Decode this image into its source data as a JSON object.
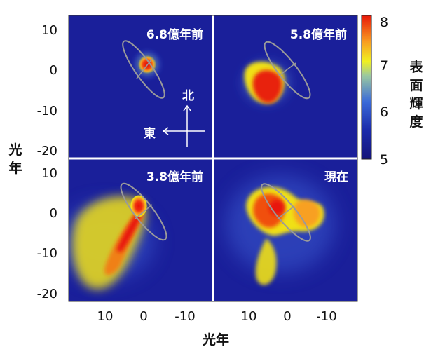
{
  "chart_data": {
    "type": "heatmap",
    "panels": [
      {
        "label": "6.8億年前",
        "position": "top-left"
      },
      {
        "label": "5.8億年前",
        "position": "top-right"
      },
      {
        "label": "3.8億年前",
        "position": "bottom-left"
      },
      {
        "label": "現在",
        "position": "bottom-right"
      }
    ],
    "xlabel": "光年",
    "ylabel": "光年",
    "x_ticks": [
      "10",
      "0",
      "-10"
    ],
    "y_ticks_top": [
      "10",
      "0",
      "-10",
      "-20"
    ],
    "y_ticks_bottom": [
      "10",
      "0",
      "-10",
      "-20"
    ],
    "colorbar": {
      "label": "表面輝度",
      "ticks": [
        "8",
        "7",
        "6",
        "5"
      ],
      "range": [
        5,
        8
      ],
      "colors": [
        "#1a1a8c",
        "#2060d8",
        "#f0f020",
        "#f8a020",
        "#e82010"
      ]
    },
    "compass": {
      "north": "北",
      "east": "東"
    },
    "background_color": "#1a1f9a"
  }
}
